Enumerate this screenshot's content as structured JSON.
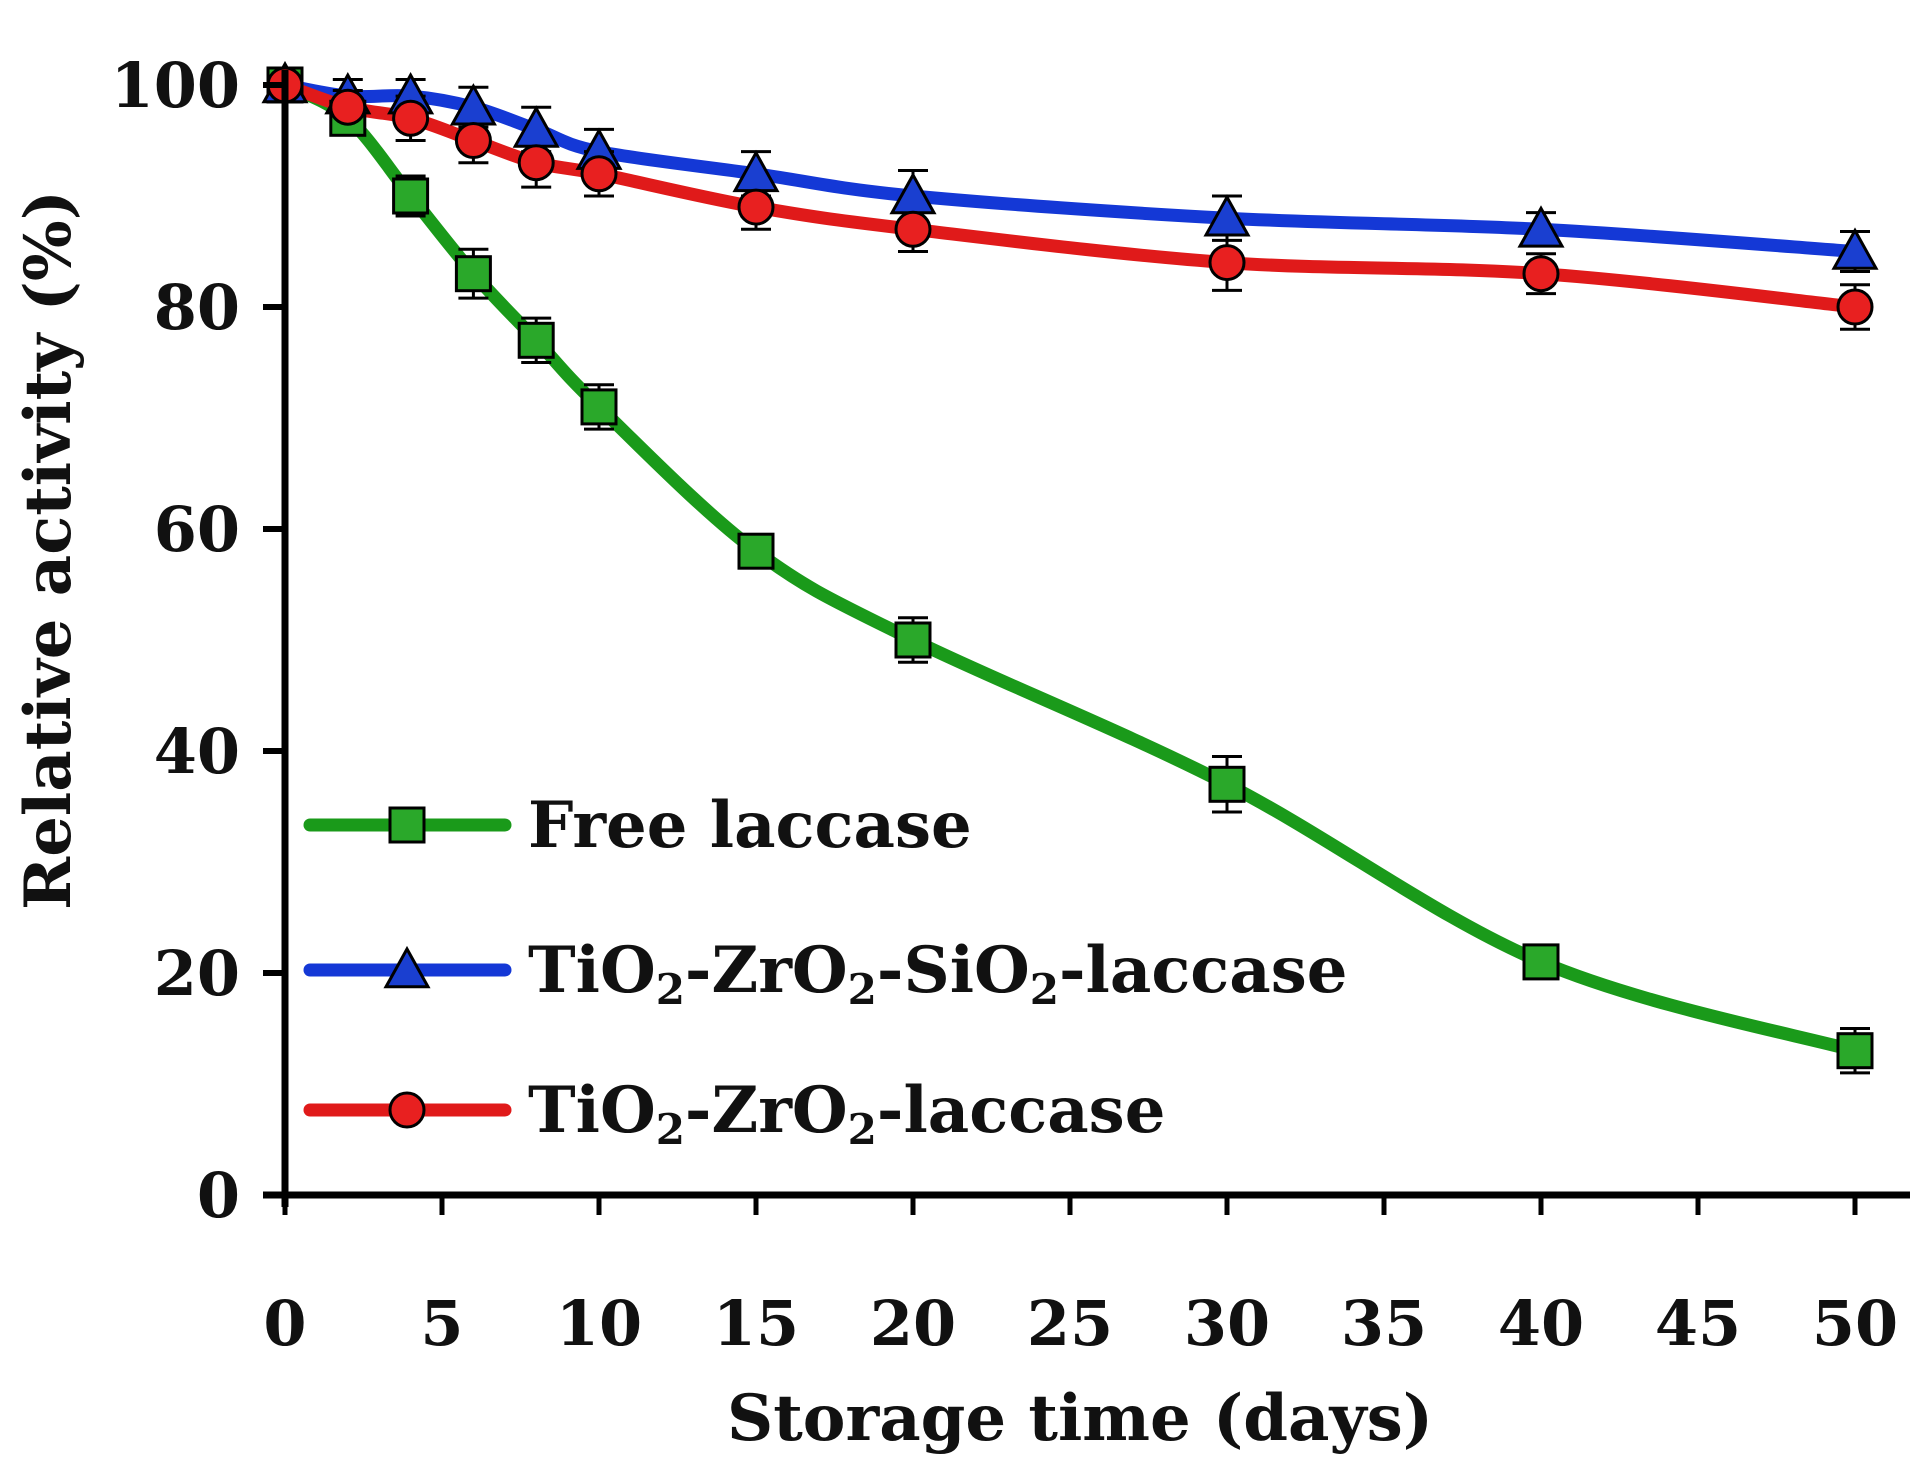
{
  "chart_data": {
    "type": "line",
    "title": "",
    "xlabel": "Storage time (days)",
    "ylabel": "Relative activity (%)",
    "xlim": [
      0,
      52
    ],
    "ylim": [
      0,
      100
    ],
    "x_ticks": [
      0,
      5,
      10,
      15,
      20,
      25,
      30,
      35,
      40,
      45,
      50
    ],
    "x_tick_labels": [
      "0",
      "5",
      "10",
      "15",
      "20",
      "25",
      "30",
      "35",
      "40",
      "45",
      "50"
    ],
    "y_ticks": [
      0,
      20,
      40,
      60,
      80,
      100
    ],
    "y_tick_labels": [
      "0",
      "20",
      "40",
      "60",
      "80",
      "100"
    ],
    "grid": false,
    "legend_position": "left-middle",
    "series": [
      {
        "name": "Free laccase",
        "legend_label": [
          "Free laccase"
        ],
        "color": "#1a9a1a",
        "marker": "square",
        "marker_fill": "#2aa82a",
        "x": [
          0,
          2,
          4,
          6,
          8,
          10,
          15,
          20,
          30,
          40,
          50
        ],
        "values": [
          100,
          97,
          90,
          83,
          77,
          71,
          58,
          50,
          37,
          21,
          13
        ],
        "errors": [
          1.5,
          1.5,
          1.8,
          2.2,
          2.0,
          2.0,
          1.5,
          2.0,
          2.5,
          1.2,
          2.0
        ]
      },
      {
        "name": "TiO2-ZrO2-SiO2-laccase",
        "legend_label": [
          "TiO",
          "2",
          "-ZrO",
          "2",
          "-SiO",
          "2",
          "-laccase"
        ],
        "color": "#1438d6",
        "marker": "triangle",
        "marker_fill": "#1a3fd0",
        "x": [
          0,
          2,
          4,
          6,
          8,
          10,
          15,
          20,
          30,
          40,
          50
        ],
        "values": [
          100,
          99,
          99,
          98,
          96,
          94,
          92,
          90,
          88,
          87,
          85
        ],
        "errors": [
          1.0,
          1.5,
          1.5,
          1.8,
          2.0,
          2.0,
          2.0,
          2.3,
          2.0,
          1.5,
          1.8
        ]
      },
      {
        "name": "TiO2-ZrO2-laccase",
        "legend_label": [
          "TiO",
          "2",
          "-ZrO",
          "2",
          "-laccase"
        ],
        "color": "#e01a1a",
        "marker": "circle",
        "marker_fill": "#e82020",
        "x": [
          0,
          2,
          4,
          6,
          8,
          10,
          15,
          20,
          30,
          40,
          50
        ],
        "values": [
          100,
          98,
          97,
          95,
          93,
          92,
          89,
          87,
          84,
          83,
          80
        ],
        "errors": [
          1.0,
          1.5,
          2.0,
          2.0,
          2.2,
          2.0,
          2.0,
          2.0,
          2.5,
          1.8,
          2.0
        ]
      }
    ]
  }
}
